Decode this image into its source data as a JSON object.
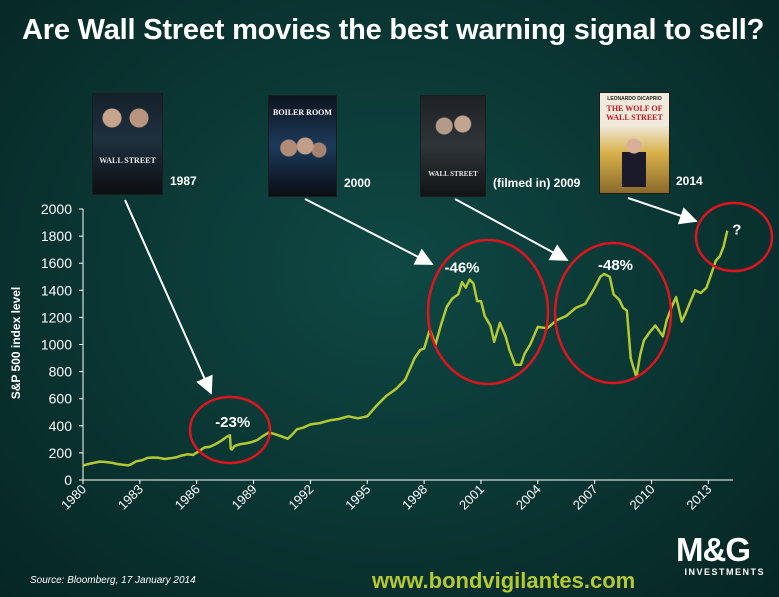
{
  "title": "Are Wall Street movies the best warning signal to sell?",
  "movies": [
    {
      "year_label": "1987",
      "poster_title": "WALL STREET",
      "icon": "wall-street-1987-poster"
    },
    {
      "year_label": "2000",
      "poster_title": "BOILER ROOM",
      "icon": "boiler-room-poster"
    },
    {
      "year_label": "(filmed in) 2009",
      "poster_title": "WALL STREET",
      "icon": "wall-street-2010-poster"
    },
    {
      "year_label": "2014",
      "poster_title": "THE WOLF OF WALL STREET",
      "poster_credit": "LEONARDO DiCAPRIO",
      "icon": "wolf-of-wall-street-poster"
    }
  ],
  "source": "Source: Bloomberg, 17 January 2014",
  "website": "www.bondvigilantes.com",
  "logo": {
    "mark": "M&G",
    "sub": "INVESTMENTS"
  },
  "colors": {
    "line": "#b4c832",
    "circle": "#e0141e",
    "arrow": "#ffffff",
    "background": "#0a3532"
  },
  "chart_data": {
    "type": "line",
    "title": "Are Wall Street movies the best warning signal to sell?",
    "xlabel": "",
    "ylabel": "S&P 500 index level",
    "xlim": [
      1980,
      2014.3
    ],
    "ylim": [
      0,
      2000
    ],
    "xticks": [
      1980,
      1983,
      1986,
      1989,
      1992,
      1995,
      1998,
      2001,
      2004,
      2007,
      2010,
      2013
    ],
    "yticks": [
      0,
      200,
      400,
      600,
      800,
      1000,
      1200,
      1400,
      1600,
      1800,
      2000
    ],
    "grid": false,
    "legend": "none",
    "series": [
      {
        "x": [
          1980.0,
          1980.2,
          1980.5,
          1980.9,
          1981.2,
          1981.5,
          1981.8,
          1982.1,
          1982.4,
          1982.6,
          1982.8,
          1983.1,
          1983.4,
          1983.7,
          1984.0,
          1984.3,
          1984.6,
          1984.9,
          1985.2,
          1985.5,
          1985.8,
          1986.1,
          1986.4,
          1986.7,
          1987.0,
          1987.3,
          1987.6,
          1987.75,
          1987.8,
          1987.85,
          1988.0,
          1988.3,
          1988.6,
          1988.9,
          1989.2,
          1989.5,
          1989.8,
          1990.1,
          1990.5,
          1990.8,
          1991.0,
          1991.3,
          1991.6,
          1992.0,
          1992.5,
          1993.0,
          1993.5,
          1994.0,
          1994.5,
          1995.0,
          1995.5,
          1996.0,
          1996.5,
          1997.0,
          1997.5,
          1997.8,
          1998.0,
          1998.3,
          1998.6,
          1998.9,
          1999.2,
          1999.5,
          1999.8,
          2000.0,
          2000.2,
          2000.4,
          2000.6,
          2000.8,
          2001.0,
          2001.2,
          2001.5,
          2001.7,
          2002.0,
          2002.3,
          2002.5,
          2002.8,
          2003.1,
          2003.3,
          2003.6,
          2004.0,
          2004.5,
          2005.0,
          2005.5,
          2006.0,
          2006.5,
          2007.0,
          2007.3,
          2007.5,
          2007.8,
          2008.0,
          2008.3,
          2008.5,
          2008.7,
          2008.9,
          2009.0,
          2009.2,
          2009.4,
          2009.6,
          2009.9,
          2010.2,
          2010.4,
          2010.6,
          2010.8,
          2011.1,
          2011.3,
          2011.6,
          2011.8,
          2012.0,
          2012.3,
          2012.6,
          2012.9,
          2013.1,
          2013.4,
          2013.6,
          2013.8,
          2014.0
        ],
        "y": [
          107,
          115,
          125,
          136,
          133,
          128,
          118,
          113,
          108,
          120,
          138,
          145,
          163,
          166,
          164,
          155,
          160,
          167,
          180,
          190,
          185,
          210,
          240,
          245,
          265,
          290,
          320,
          330,
          230,
          225,
          250,
          265,
          270,
          280,
          295,
          325,
          350,
          340,
          320,
          305,
          330,
          375,
          385,
          410,
          420,
          440,
          450,
          470,
          455,
          470,
          550,
          620,
          670,
          740,
          900,
          960,
          970,
          1110,
          1000,
          1150,
          1280,
          1340,
          1370,
          1460,
          1420,
          1480,
          1450,
          1320,
          1320,
          1210,
          1140,
          1020,
          1160,
          1060,
          960,
          850,
          850,
          930,
          1000,
          1130,
          1120,
          1180,
          1210,
          1270,
          1300,
          1420,
          1500,
          1520,
          1500,
          1370,
          1330,
          1270,
          1250,
          900,
          850,
          760,
          920,
          1030,
          1090,
          1140,
          1100,
          1060,
          1180,
          1290,
          1350,
          1170,
          1230,
          1300,
          1400,
          1380,
          1420,
          1500,
          1620,
          1650,
          1720,
          1840
        ]
      }
    ],
    "annotations": [
      {
        "label": "-23%",
        "x": 1987.9,
        "y": 390
      },
      {
        "label": "-46%",
        "x": 2000.0,
        "y": 1530
      },
      {
        "label": "-48%",
        "x": 2008.1,
        "y": 1550
      },
      {
        "label": "?",
        "x": 2014.5,
        "y": 1810
      }
    ]
  }
}
